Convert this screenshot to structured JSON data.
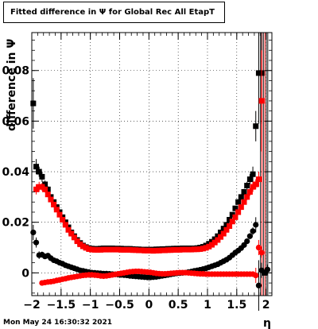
{
  "title": "Fitted difference in  Ψ  for Global Rec All EtapT",
  "timestamp": "Mon May 24 16:30:32 2021",
  "chart_data": {
    "type": "scatter",
    "title": "Fitted difference in  Ψ  for Global Rec All EtapT",
    "xlabel": "η",
    "ylabel": "difference in  Ψ",
    "xlim": [
      -2.0,
      2.1
    ],
    "ylim": [
      -0.009,
      0.095
    ],
    "xticks": [
      -2,
      -1.5,
      -1,
      -0.5,
      0,
      0.5,
      1,
      1.5,
      2
    ],
    "xtick_labels": [
      "−2",
      "−1.5",
      "−1",
      "−0.5",
      "0",
      "0.5",
      "1",
      "1.5",
      "2"
    ],
    "yticks": [
      0,
      0.02,
      0.04,
      0.06,
      0.08
    ],
    "ytick_labels": [
      "0",
      "0.02",
      "0.04",
      "0.06",
      "0.08"
    ],
    "grid": true,
    "series": [
      {
        "color": "#000000",
        "marker": "square",
        "x": [
          -1.975,
          -1.925,
          -1.875,
          -1.825,
          -1.775,
          -1.725,
          -1.675,
          -1.625,
          -1.575,
          -1.525,
          -1.475,
          -1.425,
          -1.375,
          -1.325,
          -1.275,
          -1.225,
          -1.175,
          -1.125,
          -1.075,
          -1.025,
          -0.975,
          -0.925,
          -0.875,
          -0.825,
          -0.775,
          -0.725,
          -0.675,
          -0.625,
          -0.575,
          -0.525,
          -0.475,
          -0.425,
          -0.375,
          -0.325,
          -0.275,
          -0.225,
          -0.175,
          -0.125,
          -0.075,
          -0.025,
          0.025,
          0.075,
          0.125,
          0.175,
          0.225,
          0.275,
          0.325,
          0.375,
          0.425,
          0.475,
          0.525,
          0.575,
          0.625,
          0.675,
          0.725,
          0.775,
          0.825,
          0.875,
          0.925,
          0.975,
          1.025,
          1.075,
          1.125,
          1.175,
          1.225,
          1.275,
          1.325,
          1.375,
          1.425,
          1.475,
          1.525,
          1.575,
          1.625,
          1.675,
          1.725,
          1.775,
          1.825,
          1.875,
          1.925,
          1.975
        ],
        "y": [
          0.067,
          0.042,
          0.04,
          0.038,
          0.035,
          0.033,
          0.03,
          0.028,
          0.026,
          0.024,
          0.022,
          0.02,
          0.018,
          0.016,
          0.0145,
          0.013,
          0.0118,
          0.0108,
          0.0102,
          0.0098,
          0.0096,
          0.0095,
          0.0095,
          0.0096,
          0.0097,
          0.0097,
          0.0097,
          0.0097,
          0.0096,
          0.0096,
          0.0096,
          0.0095,
          0.0095,
          0.0095,
          0.0094,
          0.0093,
          0.0093,
          0.0092,
          0.0092,
          0.0092,
          0.0092,
          0.0092,
          0.0093,
          0.0093,
          0.0094,
          0.0094,
          0.0095,
          0.0095,
          0.0096,
          0.0096,
          0.0096,
          0.0097,
          0.0097,
          0.0097,
          0.0097,
          0.0097,
          0.0098,
          0.01,
          0.0103,
          0.0108,
          0.0115,
          0.0123,
          0.0133,
          0.0145,
          0.016,
          0.0175,
          0.019,
          0.021,
          0.023,
          0.0255,
          0.028,
          0.03,
          0.032,
          0.0345,
          0.037,
          0.039,
          0.058,
          0.079,
          0.079,
          0.0
        ],
        "yerr": [
          0.01,
          0.003,
          0.002,
          0.002,
          0.0015,
          0.0012,
          0.001,
          0.001,
          0.001,
          0.001,
          0.001,
          0.001,
          0.001,
          0.001,
          0.0008,
          0.0008,
          0.0008,
          0.0008,
          0.0008,
          0.0008,
          0.0008,
          0.0008,
          0.0008,
          0.0008,
          0.0008,
          0.0008,
          0.0008,
          0.0008,
          0.0008,
          0.0008,
          0.0008,
          0.0008,
          0.0008,
          0.0008,
          0.0008,
          0.0008,
          0.0008,
          0.0008,
          0.0008,
          0.0008,
          0.0008,
          0.0008,
          0.0008,
          0.0008,
          0.0008,
          0.0008,
          0.0008,
          0.0008,
          0.0008,
          0.0008,
          0.0008,
          0.0008,
          0.0008,
          0.0008,
          0.0008,
          0.0008,
          0.0008,
          0.0008,
          0.0008,
          0.0008,
          0.0008,
          0.0008,
          0.0008,
          0.0008,
          0.0008,
          0.001,
          0.001,
          0.001,
          0.001,
          0.001,
          0.001,
          0.001,
          0.0012,
          0.0015,
          0.002,
          0.003,
          0.006,
          0.02,
          0.02,
          0.0
        ]
      },
      {
        "color": "#ff0000",
        "marker": "square",
        "x": [
          -1.925,
          -1.875,
          -1.825,
          -1.775,
          -1.725,
          -1.675,
          -1.625,
          -1.575,
          -1.525,
          -1.475,
          -1.425,
          -1.375,
          -1.325,
          -1.275,
          -1.225,
          -1.175,
          -1.125,
          -1.075,
          -1.025,
          -0.975,
          -0.925,
          -0.875,
          -0.825,
          -0.775,
          -0.725,
          -0.675,
          -0.625,
          -0.575,
          -0.525,
          -0.475,
          -0.425,
          -0.375,
          -0.325,
          -0.275,
          -0.225,
          -0.175,
          -0.125,
          -0.075,
          -0.025,
          0.025,
          0.075,
          0.125,
          0.175,
          0.225,
          0.275,
          0.325,
          0.375,
          0.425,
          0.475,
          0.525,
          0.575,
          0.625,
          0.675,
          0.725,
          0.775,
          0.825,
          0.875,
          0.925,
          0.975,
          1.025,
          1.075,
          1.125,
          1.175,
          1.225,
          1.275,
          1.325,
          1.375,
          1.425,
          1.475,
          1.525,
          1.575,
          1.625,
          1.675,
          1.725,
          1.775,
          1.825,
          1.875,
          1.925
        ],
        "y": [
          0.033,
          0.034,
          0.034,
          0.033,
          0.031,
          0.029,
          0.027,
          0.025,
          0.023,
          0.021,
          0.019,
          0.017,
          0.0155,
          0.014,
          0.0125,
          0.0113,
          0.0105,
          0.0099,
          0.0094,
          0.0092,
          0.0091,
          0.0091,
          0.0091,
          0.0092,
          0.0092,
          0.0092,
          0.0092,
          0.0092,
          0.0092,
          0.0091,
          0.0091,
          0.0091,
          0.0091,
          0.009,
          0.009,
          0.0089,
          0.0089,
          0.0088,
          0.0088,
          0.0088,
          0.0087,
          0.0088,
          0.0088,
          0.0089,
          0.0089,
          0.009,
          0.009,
          0.0091,
          0.0091,
          0.0091,
          0.0092,
          0.0092,
          0.0092,
          0.0092,
          0.0093,
          0.0093,
          0.0094,
          0.0096,
          0.0099,
          0.0104,
          0.0111,
          0.012,
          0.013,
          0.0142,
          0.0155,
          0.017,
          0.0185,
          0.0203,
          0.022,
          0.024,
          0.026,
          0.028,
          0.03,
          0.032,
          0.034,
          0.035,
          0.037,
          0.068
        ],
        "yerr": [
          0.002,
          0.002,
          0.0015,
          0.0012,
          0.001,
          0.001,
          0.001,
          0.001,
          0.001,
          0.001,
          0.001,
          0.001,
          0.0008,
          0.0008,
          0.0008,
          0.0008,
          0.0008,
          0.0008,
          0.0008,
          0.0008,
          0.0008,
          0.0008,
          0.0008,
          0.0008,
          0.0008,
          0.0008,
          0.0008,
          0.0008,
          0.0008,
          0.0008,
          0.0008,
          0.0008,
          0.0008,
          0.0008,
          0.0008,
          0.0008,
          0.0008,
          0.0008,
          0.0008,
          0.0008,
          0.0008,
          0.0008,
          0.0008,
          0.0008,
          0.0008,
          0.0008,
          0.0008,
          0.0008,
          0.0008,
          0.0008,
          0.0008,
          0.0008,
          0.0008,
          0.0008,
          0.0008,
          0.0008,
          0.0008,
          0.0008,
          0.0008,
          0.0008,
          0.0008,
          0.0008,
          0.0008,
          0.0008,
          0.0008,
          0.001,
          0.001,
          0.001,
          0.001,
          0.001,
          0.001,
          0.001,
          0.0012,
          0.0015,
          0.002,
          0.002,
          0.003,
          0.02
        ]
      },
      {
        "color": "#000000",
        "marker": "circle",
        "x": [
          -1.975,
          -1.925,
          -1.875,
          -1.825,
          -1.775,
          -1.725,
          -1.675,
          -1.625,
          -1.575,
          -1.525,
          -1.475,
          -1.425,
          -1.375,
          -1.325,
          -1.275,
          -1.225,
          -1.175,
          -1.125,
          -1.075,
          -1.025,
          -0.975,
          -0.925,
          -0.875,
          -0.825,
          -0.775,
          -0.725,
          -0.675,
          -0.625,
          -0.575,
          -0.525,
          -0.475,
          -0.425,
          -0.375,
          -0.325,
          -0.275,
          -0.225,
          -0.175,
          -0.125,
          -0.075,
          -0.025,
          0.025,
          0.075,
          0.125,
          0.175,
          0.225,
          0.275,
          0.325,
          0.375,
          0.425,
          0.475,
          0.525,
          0.575,
          0.625,
          0.675,
          0.725,
          0.775,
          0.825,
          0.875,
          0.925,
          0.975,
          1.025,
          1.075,
          1.125,
          1.175,
          1.225,
          1.275,
          1.325,
          1.375,
          1.425,
          1.475,
          1.525,
          1.575,
          1.625,
          1.675,
          1.725,
          1.775,
          1.825,
          1.875,
          1.925,
          2.025
        ],
        "y": [
          0.016,
          0.012,
          0.007,
          0.0072,
          0.0065,
          0.0068,
          0.0058,
          0.005,
          0.0046,
          0.004,
          0.0036,
          0.003,
          0.0026,
          0.0022,
          0.0018,
          0.0014,
          0.001,
          0.0008,
          0.0005,
          0.0003,
          0.0001,
          0.0,
          -0.0001,
          -0.0002,
          -0.0003,
          -0.0003,
          -0.0004,
          -0.0005,
          -0.0006,
          -0.0007,
          -0.0008,
          -0.0009,
          -0.001,
          -0.0012,
          -0.0013,
          -0.0014,
          -0.0015,
          -0.0016,
          -0.0017,
          -0.0018,
          -0.0018,
          -0.0017,
          -0.0016,
          -0.0014,
          -0.0012,
          -0.001,
          -0.0008,
          -0.0006,
          -0.0004,
          -0.0002,
          -0.0001,
          0.0,
          0.0001,
          0.0003,
          0.0005,
          0.0008,
          0.001,
          0.0012,
          0.0015,
          0.0018,
          0.0022,
          0.0026,
          0.003,
          0.0034,
          0.004,
          0.0046,
          0.0052,
          0.006,
          0.007,
          0.008,
          0.0088,
          0.0098,
          0.011,
          0.0125,
          0.0145,
          0.0165,
          0.019,
          -0.005,
          0.001,
          0.0013
        ],
        "yerr": [
          0.003,
          0.002,
          0.0015,
          0.0012,
          0.001,
          0.001,
          0.001,
          0.001,
          0.001,
          0.0008,
          0.0008,
          0.0008,
          0.0008,
          0.0008,
          0.0008,
          0.0008,
          0.0008,
          0.0008,
          0.0008,
          0.0008,
          0.0008,
          0.0008,
          0.0008,
          0.0008,
          0.0008,
          0.0008,
          0.0008,
          0.0008,
          0.0008,
          0.0008,
          0.0008,
          0.0008,
          0.0008,
          0.0008,
          0.0008,
          0.0008,
          0.0008,
          0.0008,
          0.0008,
          0.0008,
          0.0008,
          0.0008,
          0.0008,
          0.0008,
          0.0008,
          0.0008,
          0.0008,
          0.0008,
          0.0008,
          0.0008,
          0.0008,
          0.0008,
          0.0008,
          0.0008,
          0.0008,
          0.0008,
          0.0008,
          0.0008,
          0.0008,
          0.0008,
          0.0008,
          0.0008,
          0.0008,
          0.0008,
          0.0008,
          0.0008,
          0.0008,
          0.0008,
          0.0008,
          0.0008,
          0.0008,
          0.0008,
          0.001,
          0.001,
          0.0012,
          0.0015,
          0.003,
          0.01,
          0.003,
          0.002
        ]
      },
      {
        "color": "#ff0000",
        "marker": "circle",
        "x": [
          -1.825,
          -1.775,
          -1.725,
          -1.675,
          -1.625,
          -1.575,
          -1.525,
          -1.475,
          -1.425,
          -1.375,
          -1.325,
          -1.275,
          -1.225,
          -1.175,
          -1.125,
          -1.075,
          -1.025,
          -0.975,
          -0.925,
          -0.875,
          -0.825,
          -0.775,
          -0.725,
          -0.675,
          -0.625,
          -0.575,
          -0.525,
          -0.475,
          -0.425,
          -0.375,
          -0.325,
          -0.275,
          -0.225,
          -0.175,
          -0.125,
          -0.075,
          -0.025,
          0.025,
          0.075,
          0.125,
          0.175,
          0.225,
          0.275,
          0.325,
          0.375,
          0.425,
          0.475,
          0.525,
          0.575,
          0.625,
          0.675,
          0.725,
          0.775,
          0.825,
          0.875,
          0.925,
          0.975,
          1.025,
          1.075,
          1.125,
          1.175,
          1.225,
          1.275,
          1.325,
          1.375,
          1.425,
          1.475,
          1.525,
          1.575,
          1.625,
          1.675,
          1.725,
          1.775,
          1.825,
          1.875,
          1.925
        ],
        "y": [
          -0.004,
          -0.0038,
          -0.0036,
          -0.0035,
          -0.0033,
          -0.003,
          -0.0028,
          -0.0025,
          -0.0023,
          -0.002,
          -0.0018,
          -0.0016,
          -0.0014,
          -0.0012,
          -0.001,
          -0.0009,
          -0.0008,
          -0.0008,
          -0.0009,
          -0.001,
          -0.0012,
          -0.0013,
          -0.0012,
          -0.001,
          -0.0008,
          -0.0006,
          -0.0004,
          -0.0002,
          0.0,
          0.0002,
          0.0004,
          0.0005,
          0.0006,
          0.0006,
          0.0005,
          0.0004,
          0.0003,
          0.0002,
          0.0,
          -0.0002,
          -0.0003,
          -0.0004,
          -0.0004,
          -0.0003,
          -0.0002,
          -0.0001,
          0.0,
          0.0001,
          0.0001,
          0.0001,
          0.0,
          -0.0001,
          -0.0002,
          -0.0003,
          -0.0004,
          -0.0004,
          -0.0005,
          -0.0005,
          -0.0005,
          -0.0005,
          -0.0005,
          -0.0005,
          -0.0005,
          -0.0005,
          -0.0005,
          -0.0005,
          -0.0005,
          -0.0005,
          -0.0005,
          -0.0005,
          -0.0005,
          -0.0005,
          -0.0005,
          -0.001,
          0.01,
          0.008
        ],
        "yerr": [
          0.001,
          0.001,
          0.001,
          0.0008,
          0.0008,
          0.0008,
          0.0008,
          0.0008,
          0.0008,
          0.0008,
          0.0008,
          0.0008,
          0.0008,
          0.0008,
          0.0008,
          0.0008,
          0.0008,
          0.0008,
          0.0008,
          0.0008,
          0.0008,
          0.0008,
          0.0008,
          0.0008,
          0.0008,
          0.0008,
          0.0008,
          0.0008,
          0.0008,
          0.0008,
          0.0008,
          0.0008,
          0.0008,
          0.0008,
          0.0008,
          0.0008,
          0.0008,
          0.0008,
          0.0008,
          0.0008,
          0.0008,
          0.0008,
          0.0008,
          0.0008,
          0.0008,
          0.0008,
          0.0008,
          0.0008,
          0.0008,
          0.0008,
          0.0008,
          0.0008,
          0.0008,
          0.0008,
          0.0008,
          0.0008,
          0.0008,
          0.0008,
          0.0008,
          0.0008,
          0.0008,
          0.0008,
          0.0008,
          0.0008,
          0.0008,
          0.0008,
          0.0008,
          0.0008,
          0.0008,
          0.0008,
          0.0008,
          0.0008,
          0.001,
          0.003,
          0.003,
          0.002
        ]
      }
    ]
  }
}
